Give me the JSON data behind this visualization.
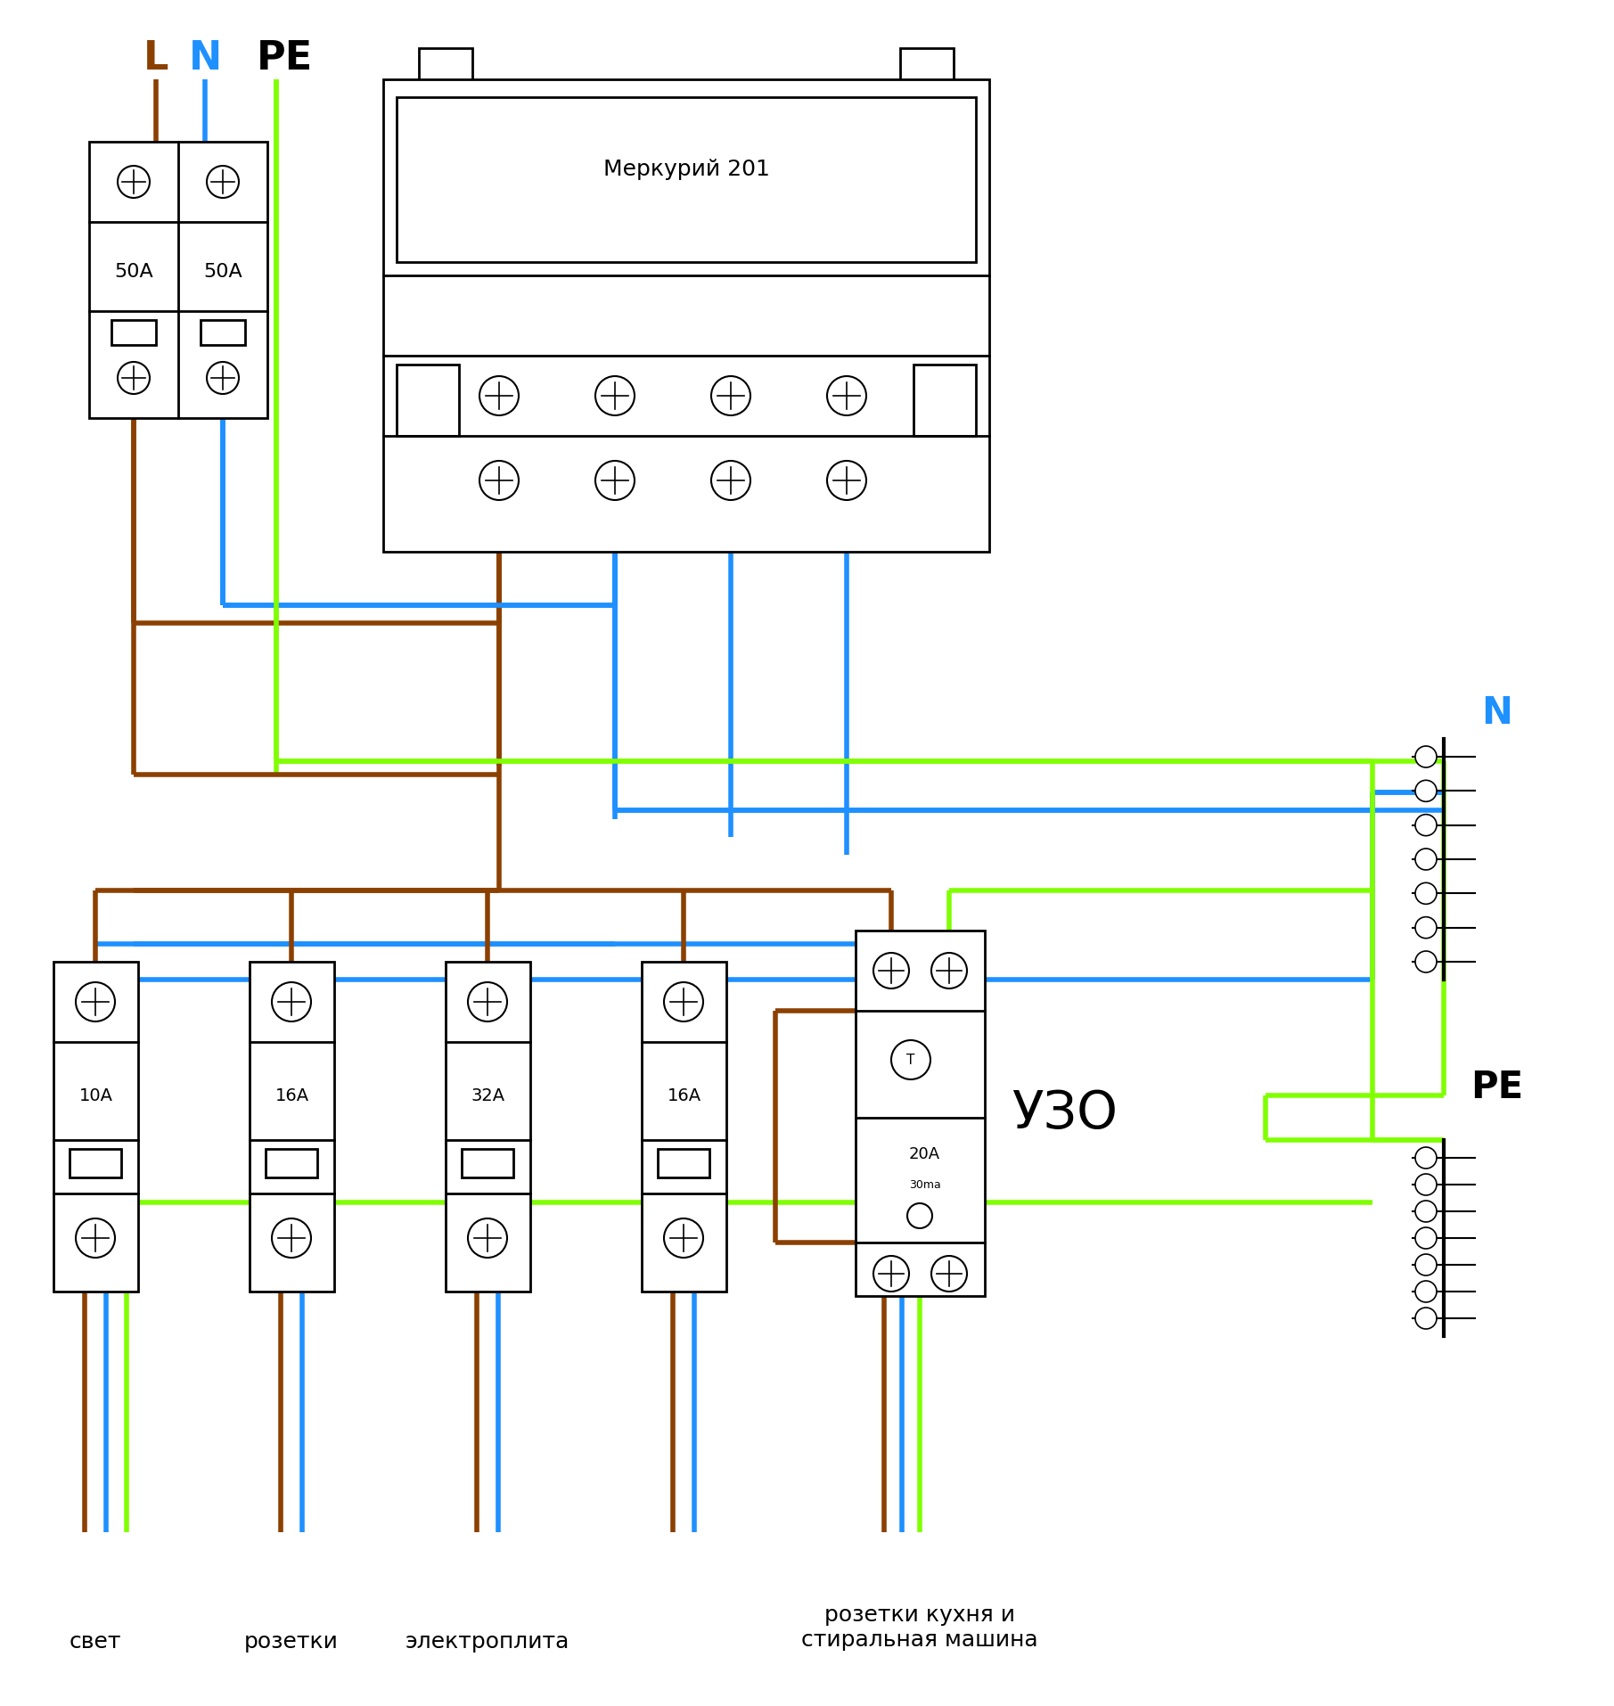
{
  "bg_color": "#ffffff",
  "color_L": "#8B4000",
  "color_N": "#1E90FF",
  "color_PE": "#80FF00",
  "color_black": "#000000",
  "label_L": "L",
  "label_N": "N",
  "label_PE": "PE",
  "label_meter": "Меркурий 201",
  "label_uzo": "УЗО",
  "label_N_bus": "N",
  "label_PE_bus": "PE",
  "labels_bottom": [
    "свет",
    "розетки",
    "электроплита",
    "розетки кухня и\nстиральная машина"
  ],
  "wire_lw": 4.0,
  "comp_lw": 2.0
}
